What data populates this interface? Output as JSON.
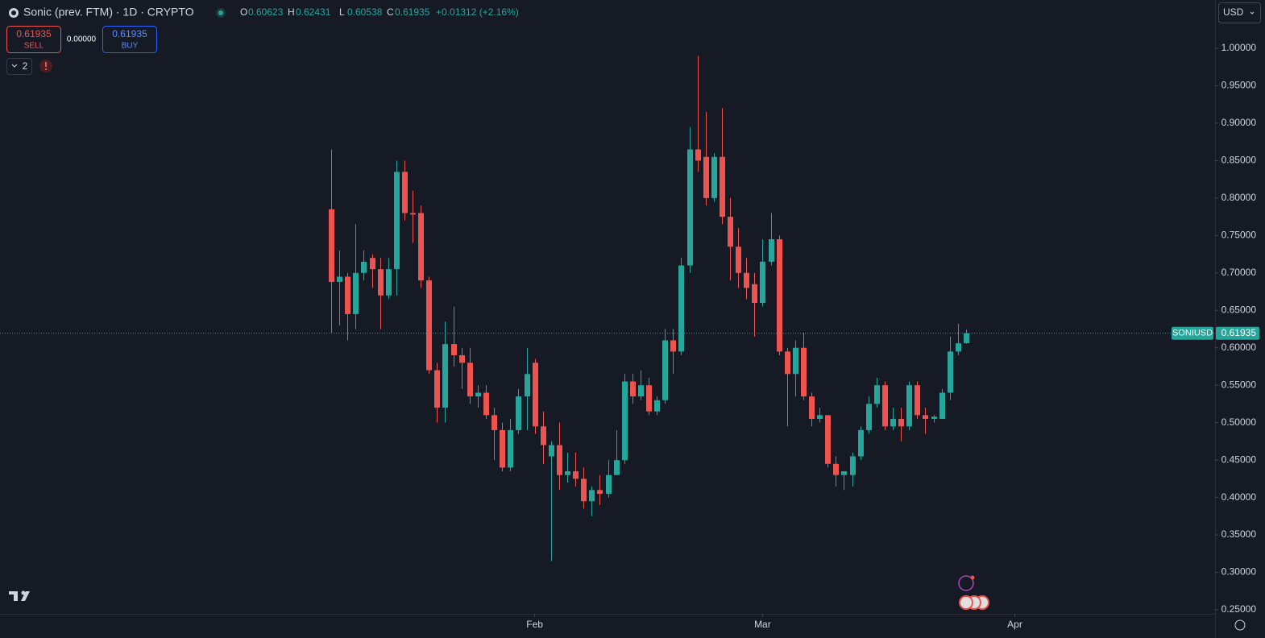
{
  "header": {
    "title": "Sonic (prev. FTM) · 1D · CRYPTO",
    "ohlc": [
      {
        "label": "O",
        "value": "0.60623"
      },
      {
        "label": "H",
        "value": "0.62431"
      },
      {
        "label": "L",
        "value": "0.60538"
      },
      {
        "label": "C",
        "value": "0.61935"
      }
    ],
    "change": "+0.01312 (+2.16%)",
    "sell": {
      "price": "0.61935",
      "label": "SELL"
    },
    "spread": "0.00000",
    "buy": {
      "price": "0.61935",
      "label": "BUY"
    },
    "indicators_count": "2",
    "currency": "USD"
  },
  "chart_data": {
    "type": "candlestick",
    "x": [
      0,
      1,
      2,
      3,
      4,
      5,
      6,
      7,
      8,
      9,
      10,
      11,
      12,
      13,
      14,
      15,
      16,
      17,
      18,
      19,
      20,
      21,
      22,
      23,
      24,
      25,
      26,
      27,
      28,
      29,
      30,
      31,
      32,
      33,
      34,
      35,
      36,
      37,
      38,
      39,
      40,
      41,
      42,
      43,
      44,
      45,
      46,
      47,
      48,
      49,
      50,
      51,
      52,
      53,
      54,
      55,
      56,
      57,
      58,
      59,
      60,
      61,
      62,
      63,
      64,
      65,
      66,
      67,
      68,
      69,
      70,
      71,
      72,
      73,
      74,
      75,
      76,
      77,
      78
    ],
    "open": [
      0.785,
      0.688,
      0.695,
      0.645,
      0.7,
      0.72,
      0.705,
      0.67,
      0.705,
      0.835,
      0.78,
      0.78,
      0.69,
      0.57,
      0.52,
      0.605,
      0.59,
      0.58,
      0.535,
      0.54,
      0.51,
      0.49,
      0.44,
      0.49,
      0.535,
      0.58,
      0.495,
      0.455,
      0.47,
      0.43,
      0.435,
      0.425,
      0.395,
      0.41,
      0.405,
      0.43,
      0.45,
      0.555,
      0.535,
      0.55,
      0.515,
      0.53,
      0.61,
      0.595,
      0.71,
      0.865,
      0.855,
      0.8,
      0.855,
      0.775,
      0.735,
      0.7,
      0.685,
      0.66,
      0.715,
      0.745,
      0.595,
      0.565,
      0.6,
      0.535,
      0.505,
      0.51,
      0.445,
      0.43,
      0.43,
      0.455,
      0.49,
      0.525,
      0.55,
      0.495,
      0.505,
      0.495,
      0.55,
      0.51,
      0.505,
      0.505,
      0.54,
      0.595,
      0.60623
    ],
    "high": [
      0.865,
      0.73,
      0.7,
      0.765,
      0.73,
      0.725,
      0.72,
      0.72,
      0.85,
      0.85,
      0.81,
      0.79,
      0.695,
      0.58,
      0.635,
      0.655,
      0.6,
      0.6,
      0.55,
      0.55,
      0.52,
      0.5,
      0.505,
      0.545,
      0.6,
      0.585,
      0.515,
      0.475,
      0.5,
      0.46,
      0.46,
      0.44,
      0.415,
      0.43,
      0.45,
      0.49,
      0.565,
      0.565,
      0.57,
      0.56,
      0.535,
      0.625,
      0.625,
      0.72,
      0.895,
      0.99,
      0.915,
      0.86,
      0.92,
      0.8,
      0.76,
      0.72,
      0.7,
      0.745,
      0.78,
      0.75,
      0.6,
      0.61,
      0.62,
      0.54,
      0.52,
      0.51,
      0.455,
      0.435,
      0.46,
      0.495,
      0.535,
      0.56,
      0.555,
      0.52,
      0.52,
      0.555,
      0.555,
      0.52,
      0.51,
      0.545,
      0.615,
      0.632,
      0.62431
    ],
    "low": [
      0.62,
      0.63,
      0.61,
      0.625,
      0.69,
      0.68,
      0.625,
      0.665,
      0.67,
      0.77,
      0.74,
      0.68,
      0.565,
      0.5,
      0.5,
      0.575,
      0.545,
      0.525,
      0.52,
      0.505,
      0.45,
      0.435,
      0.435,
      0.485,
      0.49,
      0.485,
      0.445,
      0.315,
      0.41,
      0.42,
      0.415,
      0.385,
      0.375,
      0.39,
      0.4,
      0.43,
      0.445,
      0.525,
      0.53,
      0.51,
      0.51,
      0.525,
      0.565,
      0.59,
      0.7,
      0.835,
      0.79,
      0.795,
      0.765,
      0.69,
      0.68,
      0.665,
      0.615,
      0.655,
      0.71,
      0.59,
      0.495,
      0.535,
      0.53,
      0.495,
      0.5,
      0.44,
      0.415,
      0.41,
      0.415,
      0.45,
      0.485,
      0.52,
      0.49,
      0.49,
      0.475,
      0.49,
      0.505,
      0.485,
      0.5,
      0.505,
      0.53,
      0.59,
      0.60538
    ],
    "close": [
      0.688,
      0.695,
      0.645,
      0.7,
      0.715,
      0.705,
      0.67,
      0.705,
      0.835,
      0.78,
      0.778,
      0.69,
      0.57,
      0.52,
      0.605,
      0.59,
      0.58,
      0.535,
      0.54,
      0.51,
      0.49,
      0.44,
      0.49,
      0.535,
      0.565,
      0.495,
      0.47,
      0.47,
      0.43,
      0.435,
      0.425,
      0.395,
      0.41,
      0.405,
      0.43,
      0.45,
      0.555,
      0.535,
      0.55,
      0.515,
      0.53,
      0.61,
      0.595,
      0.71,
      0.865,
      0.85,
      0.8,
      0.855,
      0.775,
      0.735,
      0.7,
      0.68,
      0.66,
      0.715,
      0.745,
      0.595,
      0.565,
      0.6,
      0.535,
      0.505,
      0.51,
      0.445,
      0.43,
      0.435,
      0.455,
      0.49,
      0.525,
      0.55,
      0.495,
      0.505,
      0.495,
      0.55,
      0.51,
      0.505,
      0.508,
      0.54,
      0.595,
      0.606,
      0.61935
    ],
    "up_color": "#26a69a",
    "down_color": "#ef5350",
    "xlim": [
      -40.7,
      108.6
    ],
    "xticks": [
      {
        "value": 25,
        "label": "Feb"
      },
      {
        "value": 53,
        "label": "Mar"
      },
      {
        "value": 84,
        "label": "Apr"
      }
    ],
    "ylim": [
      0.2446,
      1.0646
    ],
    "yticks": [
      {
        "value": 1.0,
        "label": "1.00000"
      },
      {
        "value": 0.95,
        "label": "0.95000"
      },
      {
        "value": 0.9,
        "label": "0.90000"
      },
      {
        "value": 0.85,
        "label": "0.85000"
      },
      {
        "value": 0.8,
        "label": "0.80000"
      },
      {
        "value": 0.75,
        "label": "0.75000"
      },
      {
        "value": 0.7,
        "label": "0.70000"
      },
      {
        "value": 0.65,
        "label": "0.65000"
      },
      {
        "value": 0.6,
        "label": "0.60000"
      },
      {
        "value": 0.55,
        "label": "0.55000"
      },
      {
        "value": 0.5,
        "label": "0.50000"
      },
      {
        "value": 0.45,
        "label": "0.45000"
      },
      {
        "value": 0.4,
        "label": "0.40000"
      },
      {
        "value": 0.35,
        "label": "0.35000"
      },
      {
        "value": 0.3,
        "label": "0.30000"
      },
      {
        "value": 0.25,
        "label": "0.25000"
      }
    ],
    "last_price": {
      "symbol": "SONIUSD",
      "value": 0.61935
    }
  }
}
